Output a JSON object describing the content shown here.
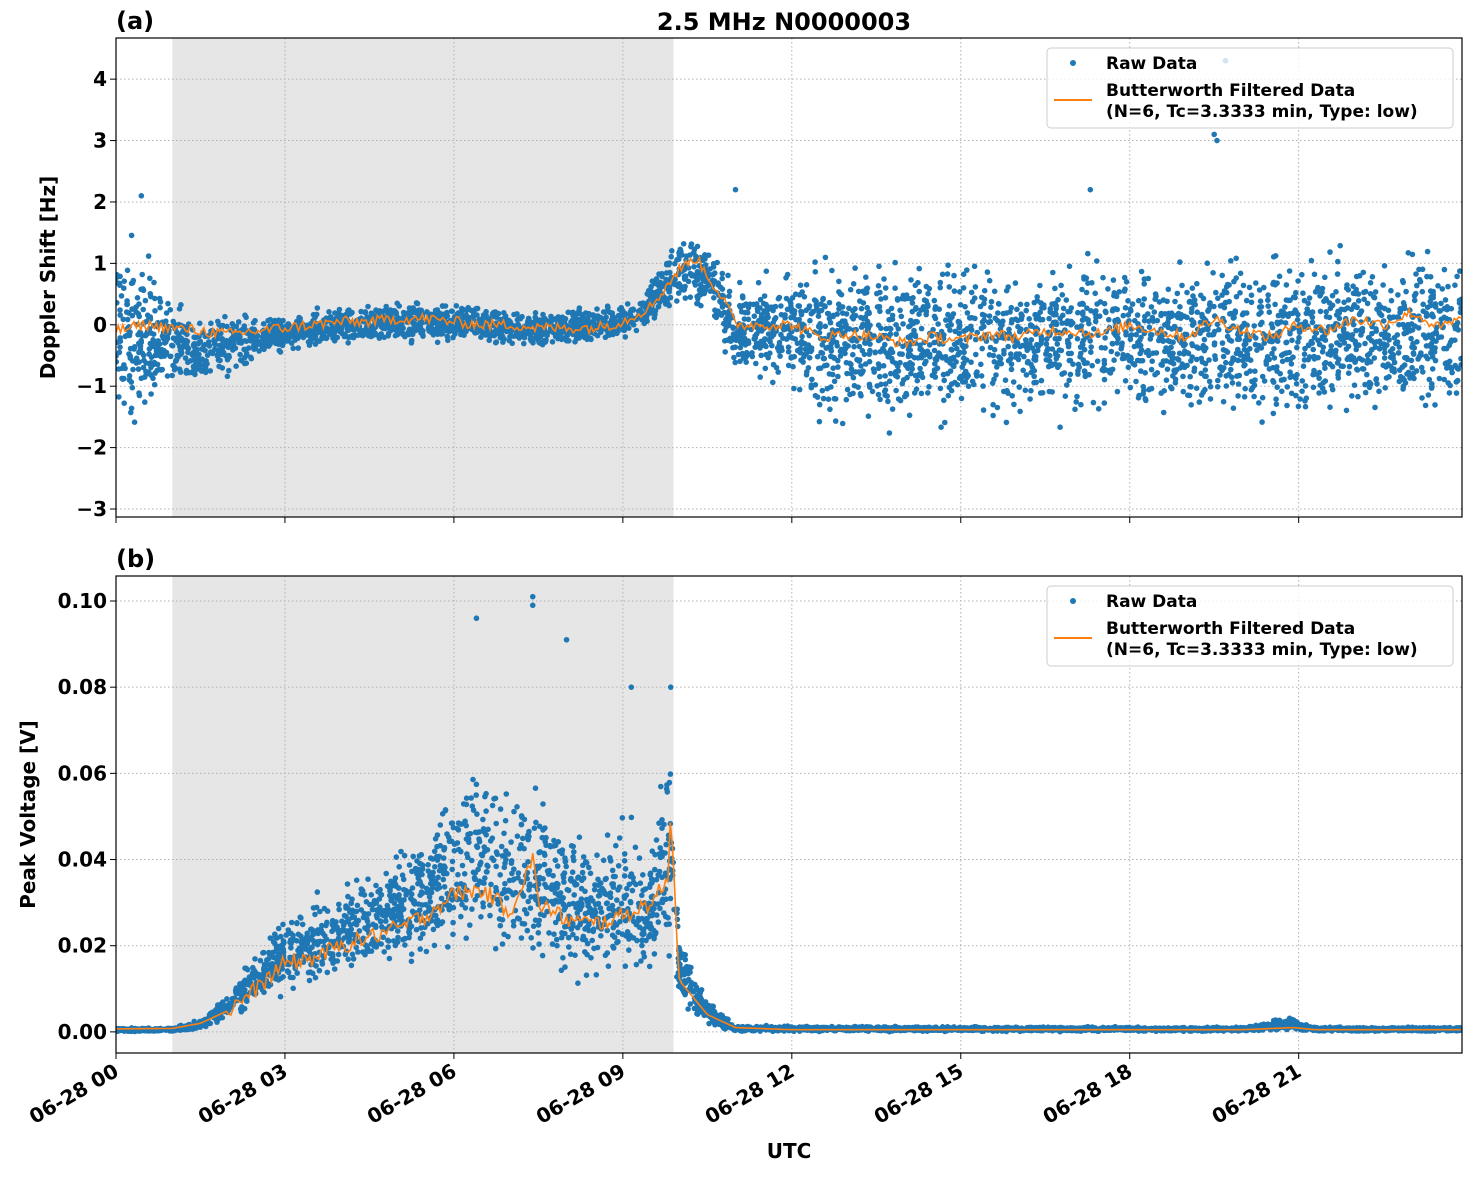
{
  "title": "2.5 MHz N0000003",
  "xlabel": "UTC",
  "x_tick_labels": [
    "06-28 00",
    "06-28 03",
    "06-28 06",
    "06-28 09",
    "06-28 12",
    "06-28 15",
    "06-28 18",
    "06-28 21"
  ],
  "colors": {
    "raw": "#1f77b4",
    "filtered": "#ff7f0e",
    "shade": "#e6e6e6"
  },
  "chart_data": [
    {
      "type": "scatter",
      "panel_label": "(a)",
      "ylabel": "Doppler Shift [Hz]",
      "xunit": "hours UTC since 06-28 00",
      "xlim": [
        0,
        23.9
      ],
      "ylim": [
        -3.13,
        4.67
      ],
      "yticks": [
        -3,
        -2,
        -1,
        0,
        1,
        2,
        3,
        4
      ],
      "ytick_labels": [
        "−3",
        "−2",
        "−1",
        "0",
        "1",
        "2",
        "3",
        "4"
      ],
      "grid": true,
      "legend": "top-right",
      "shaded_span": [
        1.0,
        9.9
      ],
      "legend_entries": [
        "Raw Data",
        "Butterworth Filtered Data",
        "(N=6, Tc=3.3333 min, Type: low)"
      ],
      "raw_envelope": {
        "x": [
          0,
          0.5,
          1.0,
          1.5,
          2.0,
          2.5,
          3.0,
          4.0,
          5.0,
          6.0,
          7.0,
          8.0,
          9.0,
          9.5,
          10.0,
          10.5,
          11.0,
          12.0,
          12.5,
          14.0,
          16.0,
          18.0,
          20.0,
          22.0,
          23.9
        ],
        "y_min": [
          -2.0,
          -1.8,
          -1.2,
          -1.2,
          -1.0,
          -0.6,
          -0.5,
          -0.4,
          -0.4,
          -0.35,
          -0.4,
          -0.45,
          -0.3,
          -0.1,
          0.2,
          0.1,
          -1.0,
          -1.2,
          -1.8,
          -1.9,
          -1.8,
          -1.7,
          -1.8,
          -1.8,
          -1.8
        ],
        "y_max": [
          1.8,
          1.6,
          0.5,
          0.3,
          0.3,
          0.2,
          0.2,
          0.35,
          0.5,
          0.4,
          0.3,
          0.3,
          0.4,
          0.8,
          1.6,
          1.5,
          0.8,
          1.0,
          1.3,
          1.3,
          1.3,
          1.4,
          1.4,
          1.5,
          1.5
        ]
      },
      "raw_outliers": {
        "x": [
          19.7,
          19.5,
          19.55,
          11.0,
          17.3,
          0.45
        ],
        "y": [
          4.3,
          3.1,
          3.0,
          2.2,
          2.2,
          2.1
        ]
      },
      "filtered": {
        "x": [
          0,
          0.5,
          1.0,
          1.5,
          2.0,
          2.5,
          3.0,
          3.5,
          4.0,
          4.5,
          5.0,
          5.5,
          6.0,
          6.5,
          7.0,
          7.5,
          8.0,
          8.5,
          9.0,
          9.5,
          10.0,
          10.3,
          10.5,
          10.8,
          11.0,
          11.5,
          12.0,
          12.5,
          13.0,
          13.5,
          14.0,
          14.5,
          15.0,
          15.5,
          16.0,
          16.5,
          17.0,
          17.5,
          18.0,
          18.5,
          19.0,
          19.5,
          20.0,
          20.5,
          21.0,
          21.5,
          22.0,
          22.5,
          23.0,
          23.5,
          23.9
        ],
        "y": [
          -0.1,
          0.0,
          -0.05,
          -0.1,
          -0.15,
          -0.1,
          -0.05,
          0.0,
          0.05,
          0.05,
          0.1,
          0.1,
          0.05,
          0.0,
          0.0,
          -0.05,
          -0.05,
          -0.05,
          0.05,
          0.3,
          0.9,
          1.1,
          0.8,
          0.4,
          0.0,
          0.0,
          0.0,
          -0.2,
          -0.15,
          -0.2,
          -0.3,
          -0.2,
          -0.25,
          -0.15,
          -0.2,
          -0.1,
          -0.1,
          -0.15,
          0.0,
          -0.1,
          -0.2,
          0.1,
          -0.1,
          -0.2,
          0.0,
          -0.1,
          0.1,
          0.0,
          0.2,
          -0.05,
          0.1
        ]
      }
    },
    {
      "type": "scatter",
      "panel_label": "(b)",
      "ylabel": "Peak Voltage [V]",
      "xunit": "hours UTC since 06-28 00",
      "xlim": [
        0,
        23.9
      ],
      "ylim": [
        -0.0049,
        0.1058
      ],
      "yticks": [
        0,
        0.02,
        0.04,
        0.06,
        0.08,
        0.1
      ],
      "ytick_labels": [
        "0.00",
        "0.02",
        "0.04",
        "0.06",
        "0.08",
        "0.10"
      ],
      "grid": true,
      "legend": "top-right",
      "shaded_span": [
        1.0,
        9.9
      ],
      "legend_entries": [
        "Raw Data",
        "Butterworth Filtered Data",
        "(N=6, Tc=3.3333 min, Type: low)"
      ],
      "raw_envelope": {
        "x": [
          0,
          1.0,
          1.5,
          2.0,
          2.5,
          3.0,
          4.0,
          5.0,
          6.0,
          6.5,
          7.0,
          7.5,
          8.0,
          8.5,
          9.0,
          9.5,
          9.85,
          10.0,
          10.5,
          11.0,
          20.0,
          20.9,
          21.3,
          23.9
        ],
        "y_min": [
          0,
          0,
          0,
          0.002,
          0.005,
          0.006,
          0.01,
          0.012,
          0.014,
          0.015,
          0.01,
          0.01,
          0.01,
          0.01,
          0.01,
          0.01,
          0.015,
          0.005,
          0.001,
          0,
          0,
          0,
          0,
          0
        ],
        "y_max": [
          0.001,
          0.001,
          0.003,
          0.01,
          0.02,
          0.03,
          0.035,
          0.045,
          0.06,
          0.065,
          0.06,
          0.065,
          0.05,
          0.045,
          0.055,
          0.045,
          0.075,
          0.025,
          0.008,
          0.0015,
          0.0012,
          0.004,
          0.0012,
          0.0012
        ]
      },
      "raw_outliers": {
        "x": [
          7.4,
          7.4,
          6.4,
          8.0,
          9.15,
          9.85
        ],
        "y": [
          0.101,
          0.099,
          0.096,
          0.091,
          0.08,
          0.08
        ]
      },
      "filtered": {
        "x": [
          0,
          1.0,
          1.5,
          2.0,
          2.5,
          3.0,
          3.5,
          4.0,
          4.5,
          5.0,
          5.5,
          6.0,
          6.5,
          7.0,
          7.4,
          7.5,
          8.0,
          8.5,
          9.0,
          9.5,
          9.8,
          9.85,
          10.0,
          10.5,
          11.0,
          12.0,
          20.0,
          20.9,
          21.3,
          23.9
        ],
        "y": [
          0.0007,
          0.0008,
          0.002,
          0.005,
          0.01,
          0.016,
          0.017,
          0.02,
          0.022,
          0.024,
          0.027,
          0.032,
          0.033,
          0.028,
          0.04,
          0.03,
          0.026,
          0.025,
          0.027,
          0.03,
          0.035,
          0.053,
          0.012,
          0.004,
          0.001,
          0.0005,
          0.0005,
          0.001,
          0.0005,
          0.0005
        ]
      }
    }
  ]
}
